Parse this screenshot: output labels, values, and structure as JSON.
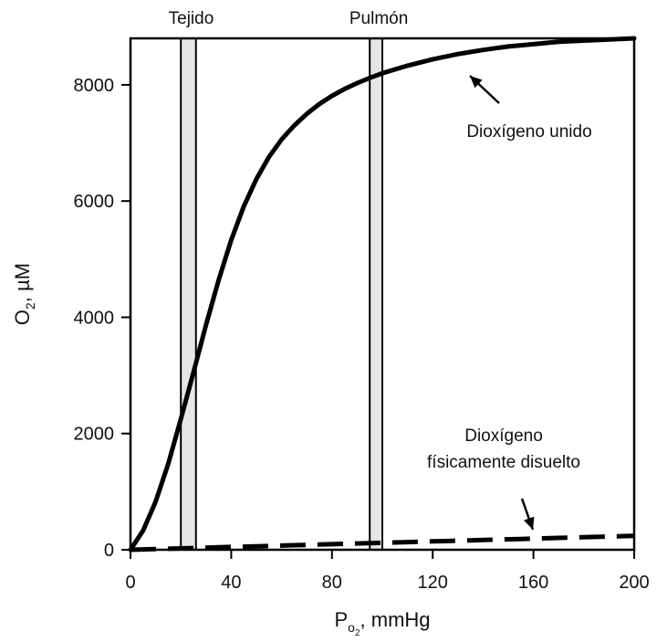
{
  "chart_data": {
    "type": "line",
    "xlabel_main": "P",
    "xlabel_sub": "o",
    "xlabel_subsub": "2",
    "xlabel_rest": ", mmHg",
    "ylabel_main": "O",
    "ylabel_sub": "2",
    "ylabel_rest": ", µM",
    "xlim": [
      0,
      200
    ],
    "ylim": [
      0,
      8800
    ],
    "x_ticks": [
      0,
      40,
      80,
      120,
      160,
      200
    ],
    "y_ticks": [
      0,
      2000,
      4000,
      6000,
      8000
    ],
    "grid": false,
    "series": [
      {
        "name": "Dioxígeno unido",
        "style": "solid",
        "x": [
          0,
          5,
          10,
          15,
          20,
          25,
          30,
          35,
          40,
          45,
          50,
          55,
          60,
          65,
          70,
          75,
          80,
          85,
          90,
          95,
          100,
          110,
          120,
          130,
          140,
          150,
          160,
          170,
          180,
          190,
          200
        ],
        "y": [
          0,
          330,
          830,
          1480,
          2250,
          3050,
          3870,
          4640,
          5330,
          5910,
          6380,
          6760,
          7060,
          7300,
          7500,
          7670,
          7810,
          7930,
          8030,
          8120,
          8200,
          8330,
          8440,
          8530,
          8600,
          8660,
          8700,
          8740,
          8760,
          8780,
          8800
        ]
      },
      {
        "name": "Dioxígeno físicamente disuelto",
        "style": "dashed",
        "x": [
          0,
          200
        ],
        "y": [
          0,
          240
        ]
      }
    ],
    "bands": [
      {
        "label": "Tejido",
        "x_start": 20,
        "x_end": 26
      },
      {
        "label": "Pulmón",
        "x_start": 95,
        "x_end": 100
      }
    ],
    "annotations": [
      {
        "text": "Dioxígeno unido",
        "target_series": 0,
        "target_x": 135
      },
      {
        "lines": [
          "Dioxígeno",
          "físicamente disuelto"
        ],
        "target_series": 1,
        "target_x": 160
      }
    ],
    "colors": {
      "line": "#000000",
      "band_fill": "#e6e6e6",
      "band_stroke": "#000000"
    }
  }
}
